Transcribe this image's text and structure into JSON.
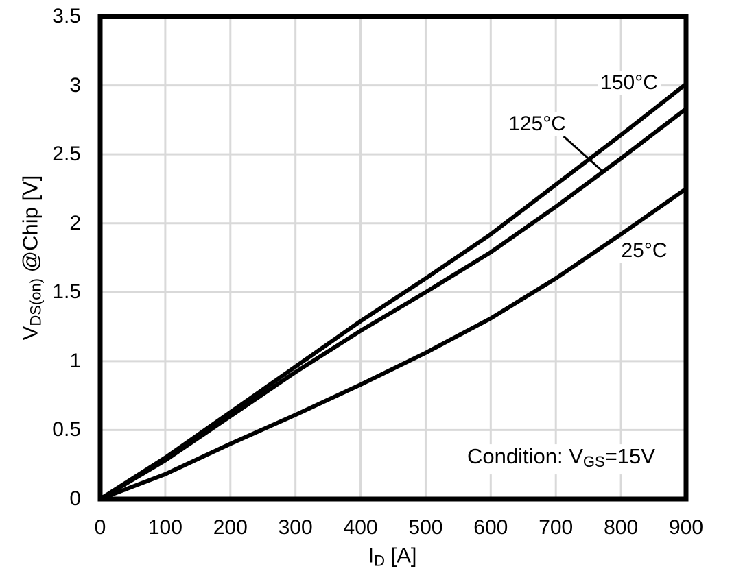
{
  "chart_data": {
    "type": "line",
    "title": "",
    "xlabel_parts": {
      "base": "I",
      "sub": "D",
      "unit": " [A]"
    },
    "ylabel_parts": {
      "base": "V",
      "sub": "DS(on)",
      "unit": " @Chip [V]"
    },
    "xlim": [
      0,
      900
    ],
    "ylim": [
      0,
      3.5
    ],
    "x_ticks": [
      0,
      100,
      200,
      300,
      400,
      500,
      600,
      700,
      800,
      900
    ],
    "y_ticks": [
      0,
      0.5,
      1,
      1.5,
      2,
      2.5,
      3,
      3.5
    ],
    "x_tick_labels": [
      "0",
      "100",
      "200",
      "300",
      "400",
      "500",
      "600",
      "700",
      "800",
      "900"
    ],
    "y_tick_labels": [
      "0",
      "0.5",
      "1",
      "1.5",
      "2",
      "2.5",
      "3",
      "3.5"
    ],
    "grid": true,
    "legend_position": "inline-labels",
    "x": [
      0,
      100,
      200,
      300,
      400,
      500,
      600,
      700,
      800,
      900
    ],
    "series": [
      {
        "name": "150°C",
        "values": [
          0,
          0.3,
          0.63,
          0.96,
          1.29,
          1.6,
          1.92,
          2.28,
          2.64,
          3.01
        ]
      },
      {
        "name": "125°C",
        "values": [
          0,
          0.28,
          0.6,
          0.92,
          1.22,
          1.5,
          1.79,
          2.12,
          2.47,
          2.83
        ]
      },
      {
        "name": "25°C",
        "values": [
          0,
          0.18,
          0.4,
          0.61,
          0.83,
          1.06,
          1.31,
          1.6,
          1.92,
          2.25
        ]
      }
    ],
    "condition_parts": {
      "prefix": "Condition: V",
      "sub": "GS",
      "suffix": "=15V"
    },
    "callout_125": {
      "from_data": [
        712,
        2.63
      ],
      "to_data": [
        771,
        2.38
      ]
    },
    "colors": {
      "curve": "#000000",
      "grid": "#d9d9d9",
      "frame": "#000000",
      "background": "#ffffff",
      "text": "#000000"
    }
  }
}
